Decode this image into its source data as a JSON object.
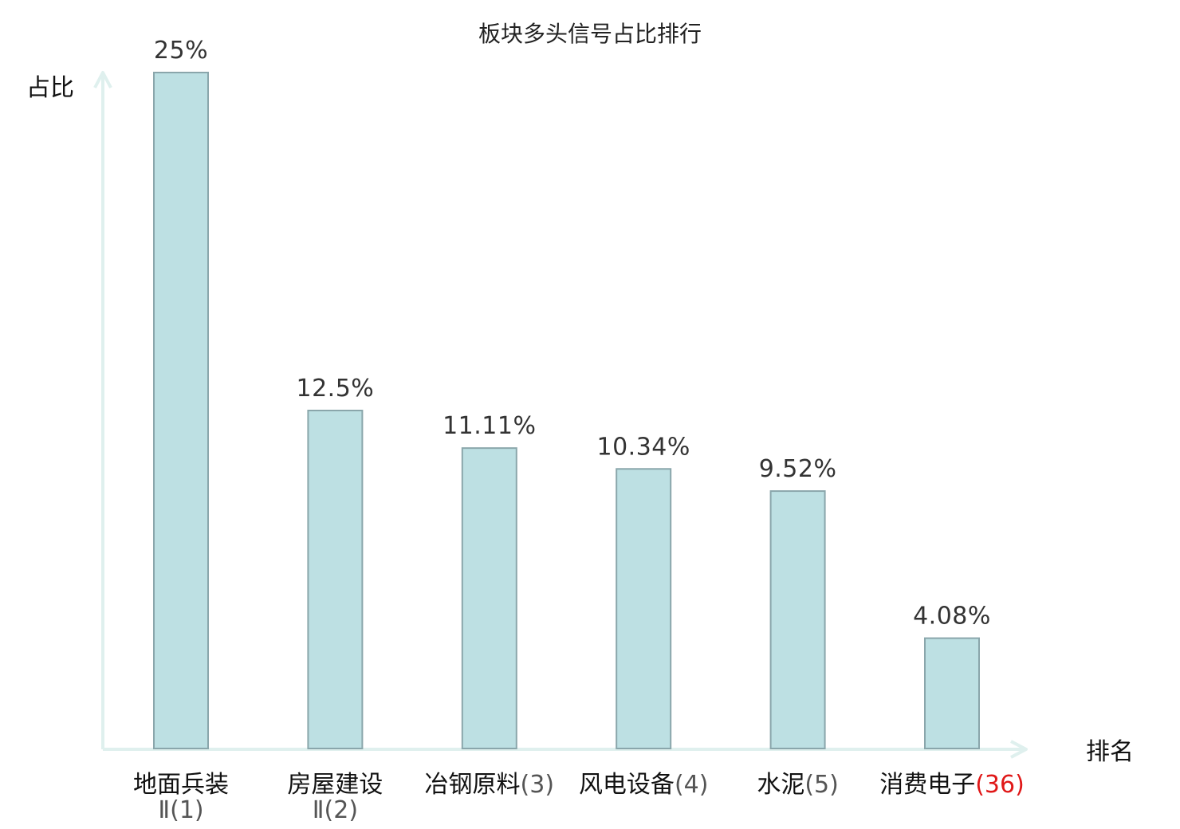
{
  "chart_data": {
    "type": "bar",
    "title": "板块多头信号占比排行",
    "ylabel": "占比",
    "xlabel": "排名",
    "ylim": [
      0,
      25
    ],
    "grid": false,
    "categories": [
      {
        "name": "地面兵装",
        "suffix": "Ⅱ(1)",
        "wrap": true,
        "highlight": false
      },
      {
        "name": "房屋建设",
        "suffix": "Ⅱ(2)",
        "wrap": true,
        "highlight": false
      },
      {
        "name": "冶钢原料",
        "suffix": "(3)",
        "wrap": false,
        "highlight": false
      },
      {
        "name": "风电设备",
        "suffix": "(4)",
        "wrap": false,
        "highlight": false
      },
      {
        "name": "水泥",
        "suffix": "(5)",
        "wrap": false,
        "highlight": false
      },
      {
        "name": "消费电子",
        "suffix": "(36)",
        "wrap": false,
        "highlight": true
      }
    ],
    "values": [
      25,
      12.5,
      11.11,
      10.34,
      9.52,
      4.08
    ],
    "value_labels": [
      "25%",
      "12.5%",
      "11.11%",
      "10.34%",
      "9.52%",
      "4.08%"
    ]
  },
  "colors": {
    "bar_fill": "#bde0e3",
    "bar_stroke": "#8aa6ab",
    "axis": "#dff0ee",
    "highlight": "#e01818"
  }
}
